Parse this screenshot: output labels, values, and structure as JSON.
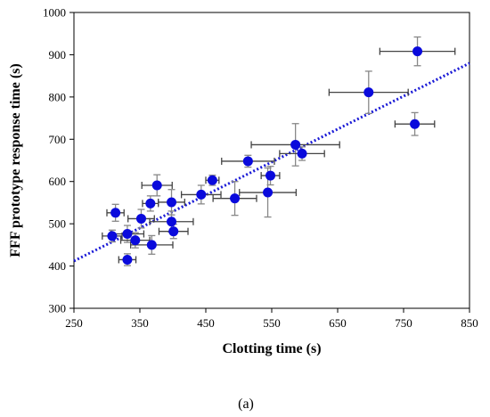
{
  "chart_data": {
    "type": "scatter",
    "xlabel": "Clotting time (s)",
    "ylabel": "FFF prototype response time (s)",
    "caption": "(a)",
    "xlim": [
      250,
      850
    ],
    "ylim": [
      300,
      1000
    ],
    "x_ticks": [
      250,
      350,
      450,
      550,
      650,
      750,
      850
    ],
    "y_ticks": [
      300,
      400,
      500,
      600,
      700,
      800,
      900,
      1000
    ],
    "grid": false,
    "legend": "none",
    "marker_color": "#0a0adc",
    "error_bar_color": "#444444",
    "trendline": {
      "style": "dotted",
      "color": "#1a1ad6",
      "x": [
        250,
        850
      ],
      "y": [
        412,
        880
      ]
    },
    "points": [
      {
        "x": 771,
        "y": 908,
        "xerr": 57,
        "yerr": 34
      },
      {
        "x": 697,
        "y": 811,
        "xerr": 60,
        "yerr": 50
      },
      {
        "x": 767,
        "y": 736,
        "xerr": 30,
        "yerr": 27
      },
      {
        "x": 586,
        "y": 687,
        "xerr": 67,
        "yerr": 50
      },
      {
        "x": 596,
        "y": 666,
        "xerr": 34,
        "yerr": 16
      },
      {
        "x": 514,
        "y": 648,
        "xerr": 40,
        "yerr": 14
      },
      {
        "x": 548,
        "y": 614,
        "xerr": 14,
        "yerr": 22
      },
      {
        "x": 460,
        "y": 603,
        "xerr": 10,
        "yerr": 12
      },
      {
        "x": 376,
        "y": 591,
        "xerr": 23,
        "yerr": 25
      },
      {
        "x": 544,
        "y": 574,
        "xerr": 43,
        "yerr": 58
      },
      {
        "x": 443,
        "y": 569,
        "xerr": 30,
        "yerr": 22
      },
      {
        "x": 494,
        "y": 560,
        "xerr": 33,
        "yerr": 40
      },
      {
        "x": 398,
        "y": 551,
        "xerr": 20,
        "yerr": 30
      },
      {
        "x": 366,
        "y": 548,
        "xerr": 12,
        "yerr": 18
      },
      {
        "x": 313,
        "y": 526,
        "xerr": 13,
        "yerr": 20
      },
      {
        "x": 352,
        "y": 512,
        "xerr": 20,
        "yerr": 22
      },
      {
        "x": 398,
        "y": 505,
        "xerr": 33,
        "yerr": 25
      },
      {
        "x": 401,
        "y": 482,
        "xerr": 22,
        "yerr": 17
      },
      {
        "x": 331,
        "y": 476,
        "xerr": 25,
        "yerr": 20
      },
      {
        "x": 308,
        "y": 471,
        "xerr": 15,
        "yerr": 14
      },
      {
        "x": 343,
        "y": 461,
        "xerr": 22,
        "yerr": 18
      },
      {
        "x": 368,
        "y": 450,
        "xerr": 32,
        "yerr": 22
      },
      {
        "x": 331,
        "y": 415,
        "xerr": 13,
        "yerr": 14
      }
    ]
  }
}
